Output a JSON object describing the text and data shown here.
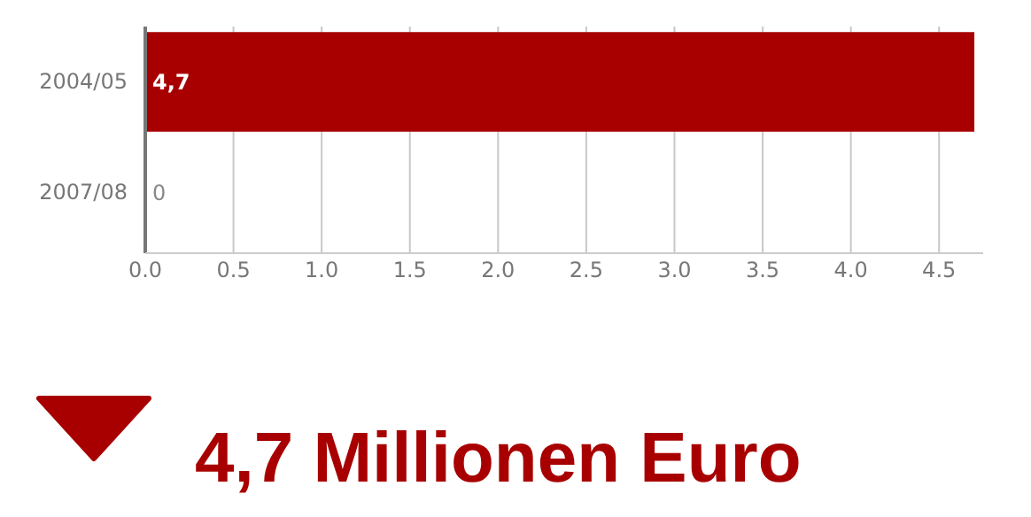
{
  "chart_data": {
    "type": "bar",
    "orientation": "horizontal",
    "categories": [
      "2004/05",
      "2007/08"
    ],
    "values": [
      4.7,
      0
    ],
    "value_labels": [
      "4,7",
      "0"
    ],
    "color": "#a80000",
    "xlim": [
      0,
      4.75
    ],
    "xticks": [
      {
        "value": 0,
        "label": "0.0"
      },
      0.5,
      {
        "value": 1,
        "label": "1.0"
      },
      1.5,
      {
        "value": 2,
        "label": "2.0"
      },
      2.5,
      {
        "value": 3,
        "label": "3.0"
      },
      3.5,
      {
        "value": 4,
        "label": "4.0"
      },
      4.5
    ],
    "grid": "x",
    "annotations": [
      "4,7 Millionen Euro"
    ]
  }
}
